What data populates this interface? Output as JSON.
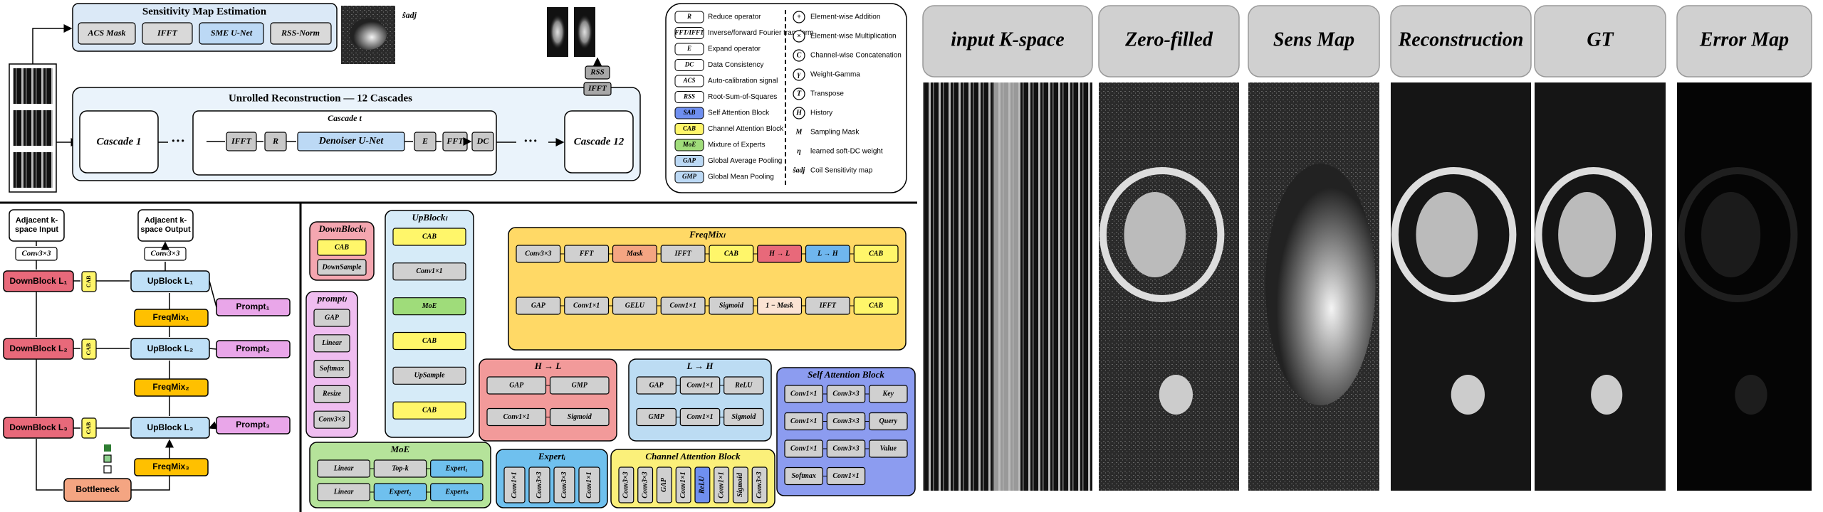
{
  "sensitivity": {
    "title": "Sensitivity Map Estimation",
    "blocks": [
      "ACS Mask",
      "IFFT",
      "SME U-Net",
      "RSS-Norm"
    ],
    "output": "ŝadj"
  },
  "unrolled": {
    "title": "Unrolled Reconstruction — 12 Cascades",
    "first": "Cascade 1",
    "last": "Cascade 12",
    "inner_title": "Cascade t",
    "blocks": [
      "IFFT",
      "R",
      "Denoiser U-Net",
      "E",
      "FFT",
      "DC"
    ],
    "post": [
      "RSS",
      "IFFT"
    ]
  },
  "legend": {
    "left": [
      {
        "symbol": "R",
        "text": "Reduce operator"
      },
      {
        "symbol": "FFT/IFFT",
        "text": "Inverse/forward Fourier transform"
      },
      {
        "symbol": "E",
        "text": "Expand operator"
      },
      {
        "symbol": "DC",
        "text": "Data Consistency"
      },
      {
        "symbol": "ACS",
        "text": "Auto-calibration signal"
      },
      {
        "symbol": "RSS",
        "text": "Root-Sum-of-Squares"
      },
      {
        "symbol": "SAB",
        "text": "Self Attention Block"
      },
      {
        "symbol": "CAB",
        "text": "Channel Attention Block"
      },
      {
        "symbol": "MoE",
        "text": "Mixture of Experts"
      },
      {
        "symbol": "GAP",
        "text": "Global Average Pooling"
      },
      {
        "symbol": "GMP",
        "text": "Global Mean Pooling"
      }
    ],
    "right": [
      {
        "symbol": "+",
        "text": "Element-wise Addition"
      },
      {
        "symbol": "×",
        "text": "Element-wise Multiplication"
      },
      {
        "symbol": "C",
        "text": "Channel-wise Concatenation"
      },
      {
        "symbol": "γ",
        "text": "Weight-Gamma"
      },
      {
        "symbol": "T",
        "text": "Transpose"
      },
      {
        "symbol": "H",
        "text": "History"
      },
      {
        "symbol": "M",
        "text": "Sampling Mask"
      },
      {
        "symbol": "η",
        "text": "learned soft-DC weight"
      },
      {
        "symbol": "ŝadj",
        "text": "Coil Sensitivity map"
      }
    ]
  },
  "unet": {
    "input": "Adjacent k-space Input",
    "output": "Adjacent k-space Output",
    "conv_in": "Conv3×3",
    "conv_out": "Conv3×3",
    "down": [
      "DownBlock L₁",
      "DownBlock L₂",
      "DownBlock L₃"
    ],
    "cab": "CAB",
    "up": [
      "UpBlock L₁",
      "UpBlock L₂",
      "UpBlock L₃"
    ],
    "freqmix": [
      "FreqMix₁",
      "FreqMix₂",
      "FreqMix₃"
    ],
    "prompt": [
      "Prompt₁",
      "Prompt₂",
      "Prompt₃"
    ],
    "bottleneck": "Bottleneck"
  },
  "modules": {
    "downblock": {
      "title": "DownBlockₗ",
      "blocks": [
        "CAB",
        "DownSample"
      ]
    },
    "prompt": {
      "title": "promptₗ",
      "blocks": [
        "GAP",
        "Linear",
        "Softmax",
        "Resize",
        "Conv3×3"
      ]
    },
    "upblock": {
      "title": "UpBlockₗ",
      "blocks": [
        "CAB",
        "Conv1×1",
        "MoE",
        "CAB",
        "UpSample",
        "CAB"
      ]
    },
    "freqmix": {
      "title": "FreqMixₗ",
      "blocks": [
        "Conv3×3",
        "FFT",
        "Mask",
        "IFFT",
        "CAB",
        "H → L",
        "L → H",
        "CAB",
        "GAP",
        "Conv1×1",
        "GELU",
        "Conv1×1",
        "Sigmoid",
        "1 − Mask",
        "IFFT",
        "CAB"
      ]
    },
    "h2l": {
      "title": "H → L",
      "blocks": [
        "GAP",
        "GMP",
        "Conv1×1",
        "Sigmoid"
      ]
    },
    "l2h": {
      "title": "L → H",
      "blocks": [
        "GAP",
        "Conv1×1",
        "ReLU",
        "GMP",
        "Conv1×1",
        "Sigmoid"
      ]
    },
    "sab": {
      "title": "Self Attention Block",
      "blocks": [
        "Conv1×1",
        "Conv3×3",
        "Key",
        "Conv1×1",
        "Conv3×3",
        "Query",
        "Conv1×1",
        "Conv3×3",
        "Value",
        "Softmax",
        "Conv1×1"
      ]
    },
    "moe": {
      "title": "MoE",
      "blocks": [
        "Linear",
        "Top-k",
        "Expert₁",
        "Linear",
        "Expert₂",
        "Expertₙ"
      ]
    },
    "expert": {
      "title": "Expertᵢ",
      "blocks": [
        "Conv1×1",
        "Conv3×3",
        "Conv3×3",
        "Conv1×1"
      ]
    },
    "cab": {
      "title": "Channel Attention Block",
      "blocks": [
        "Conv3×3",
        "Conv3×3",
        "GAP",
        "Conv1×1",
        "ReLU",
        "Conv1×1",
        "Sigmoid",
        "Conv3×3"
      ]
    }
  },
  "panels": {
    "headers": [
      "input K-space",
      "Zero-filled",
      "Sens Map",
      "Reconstruction",
      "GT",
      "Error Map"
    ]
  }
}
